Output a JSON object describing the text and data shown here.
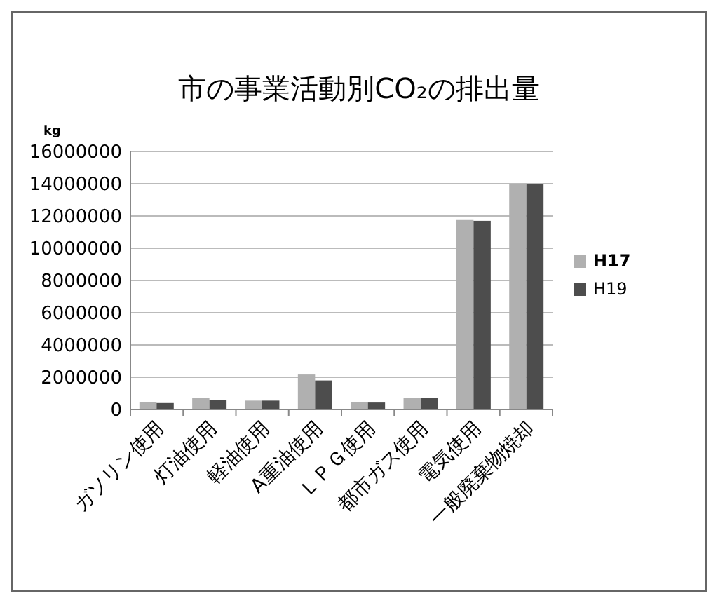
{
  "chart_data": {
    "type": "bar",
    "title": "市の事業活動別CO₂の排出量",
    "ylabel": "kg",
    "categories": [
      "ガソリン使用",
      "灯油使用",
      "軽油使用",
      "A重油使用",
      "ＬＰＧ使用",
      "都市ガス使用",
      "電気使用",
      "一般廃棄物焼却"
    ],
    "series": [
      {
        "name": "H17",
        "color": "#b0b0b0",
        "values": [
          460000,
          730000,
          550000,
          2170000,
          460000,
          730000,
          11750000,
          14000000
        ]
      },
      {
        "name": "H19",
        "color": "#4d4d4d",
        "values": [
          400000,
          580000,
          550000,
          1800000,
          430000,
          730000,
          11700000,
          14000000
        ]
      }
    ],
    "ylim": [
      0,
      16000000
    ],
    "yticks": [
      0,
      2000000,
      4000000,
      6000000,
      8000000,
      10000000,
      12000000,
      14000000,
      16000000
    ],
    "grid": "y",
    "legend": "right"
  }
}
